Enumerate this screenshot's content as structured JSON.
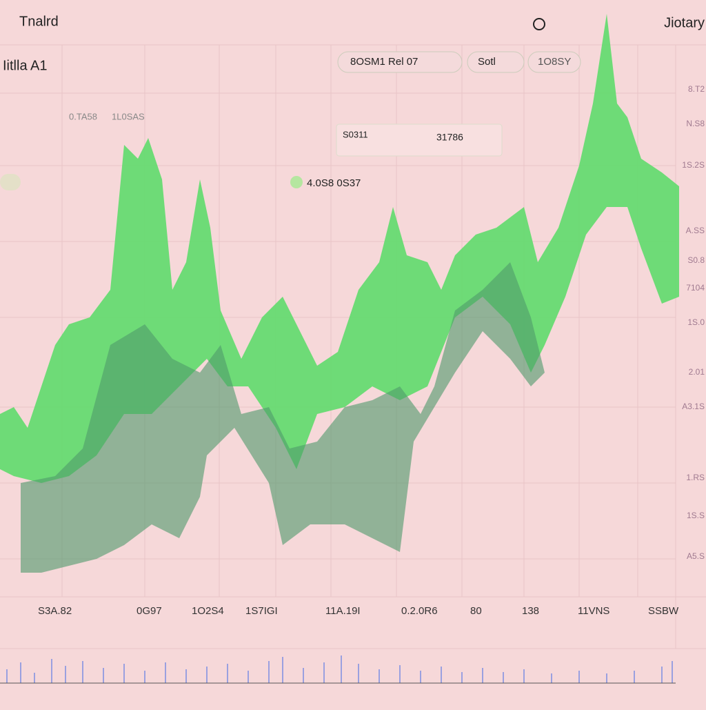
{
  "header": {
    "title": "Tnalrd",
    "right": "Jiotary"
  },
  "ticker": {
    "name": "Iitlla A1",
    "stats": [
      "0.TA58",
      "1L0SAS"
    ]
  },
  "pills": [
    "8OSM1 Rel 07",
    "Sotl",
    "1O8SY"
  ],
  "info": {
    "label": "S0311",
    "value": "31786"
  },
  "readout": "4.0S8 0S37",
  "right_axis": [
    "8.T2",
    "N.S8",
    "1S.2S",
    "A.SS",
    "S0.8",
    "7104",
    "1S.0",
    "2.01",
    "A3.1S",
    "1.RS",
    "1S.S",
    "A5.S"
  ],
  "bottom_labels": [
    "S3A.82",
    "0G97",
    "1O2S4",
    "1S7IGI",
    "11A.19I",
    "0.2.0R6",
    "80",
    "138",
    "11VNS",
    "SSBW"
  ]
}
